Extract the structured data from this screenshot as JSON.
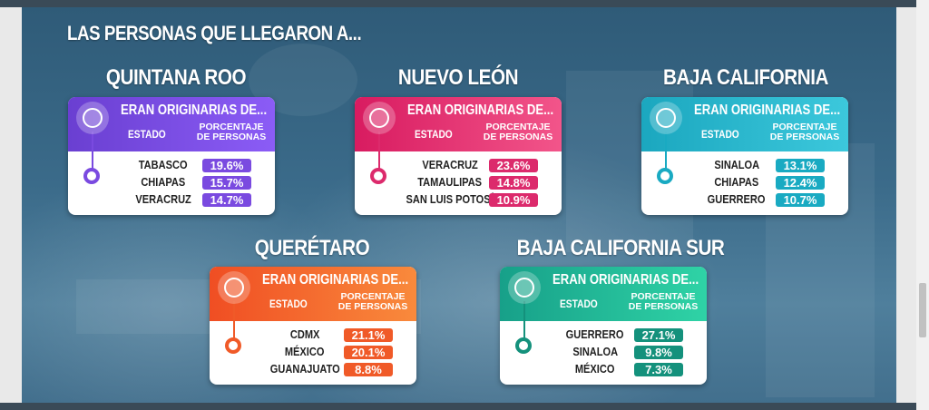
{
  "title": "LAS PERSONAS QUE LLEGARON A...",
  "card_heading": "ERAN ORIGINARIAS DE...",
  "col_estado": "ESTADO",
  "col_pct": "PORCENTAJE DE PERSONAS",
  "cards": [
    {
      "state": "QUINTANA ROO",
      "gradient": [
        "#6a3fd1",
        "#8b5cf6"
      ],
      "accent": "#7a4ae0",
      "rows": [
        {
          "estado": "TABASCO",
          "pct": "19.6%"
        },
        {
          "estado": "CHIAPAS",
          "pct": "15.7%"
        },
        {
          "estado": "VERACRUZ",
          "pct": "14.7%"
        }
      ]
    },
    {
      "state": "NUEVO LEÓN",
      "gradient": [
        "#d81b60",
        "#f2558a"
      ],
      "accent": "#dc2a6c",
      "rows": [
        {
          "estado": "VERACRUZ",
          "pct": "23.6%"
        },
        {
          "estado": "TAMAULIPAS",
          "pct": "14.8%"
        },
        {
          "estado": "SAN LUIS POTOSÍ",
          "pct": "10.9%"
        }
      ]
    },
    {
      "state": "BAJA CALIFORNIA",
      "gradient": [
        "#1ba7bf",
        "#3cc8dc"
      ],
      "accent": "#19aac2",
      "rows": [
        {
          "estado": "SINALOA",
          "pct": "13.1%"
        },
        {
          "estado": "CHIAPAS",
          "pct": "12.4%"
        },
        {
          "estado": "GUERRERO",
          "pct": "10.7%"
        }
      ]
    },
    {
      "state": "QUERÉTARO",
      "gradient": [
        "#f04e23",
        "#f98a3c"
      ],
      "accent": "#f05a28",
      "rows": [
        {
          "estado": "CDMX",
          "pct": "21.1%"
        },
        {
          "estado": "MÉXICO",
          "pct": "20.1%"
        },
        {
          "estado": "GUANAJUATO",
          "pct": "8.8%"
        }
      ]
    },
    {
      "state": "BAJA CALIFORNIA SUR",
      "gradient": [
        "#17a089",
        "#2fd3a6"
      ],
      "accent": "#14917c",
      "rows": [
        {
          "estado": "GUERRERO",
          "pct": "27.1%"
        },
        {
          "estado": "SINALOA",
          "pct": "9.8%"
        },
        {
          "estado": "MÉXICO",
          "pct": "7.3%"
        }
      ]
    }
  ]
}
